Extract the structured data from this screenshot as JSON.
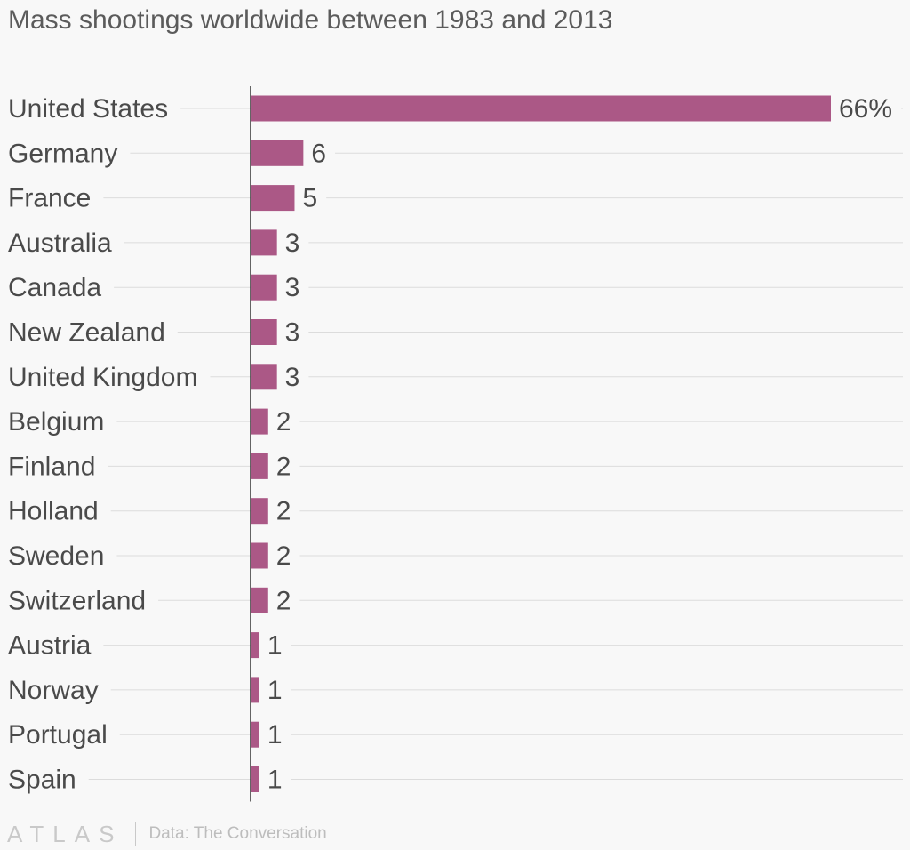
{
  "title": "Mass shootings worldwide between 1983 and 2013",
  "footer": {
    "logo": "ATLAS",
    "source": "Data: The Conversation"
  },
  "colors": {
    "bar": "#ab5886",
    "gridline": "#dcdcdc",
    "axis": "#333333",
    "label": "#4a4a4a"
  },
  "chart_data": {
    "type": "bar",
    "orientation": "horizontal",
    "title": "Mass shootings worldwide between 1983 and 2013",
    "unit": "%",
    "categories": [
      "United States",
      "Germany",
      "France",
      "Australia",
      "Canada",
      "New Zealand",
      "United Kingdom",
      "Belgium",
      "Finland",
      "Holland",
      "Sweden",
      "Switzerland",
      "Austria",
      "Norway",
      "Portugal",
      "Spain"
    ],
    "values": [
      66,
      6,
      5,
      3,
      3,
      3,
      3,
      2,
      2,
      2,
      2,
      2,
      1,
      1,
      1,
      1
    ],
    "value_labels": [
      "66%",
      "6",
      "5",
      "3",
      "3",
      "3",
      "3",
      "2",
      "2",
      "2",
      "2",
      "2",
      "1",
      "1",
      "1",
      "1"
    ],
    "xlim": [
      0,
      66
    ],
    "grid": true
  }
}
